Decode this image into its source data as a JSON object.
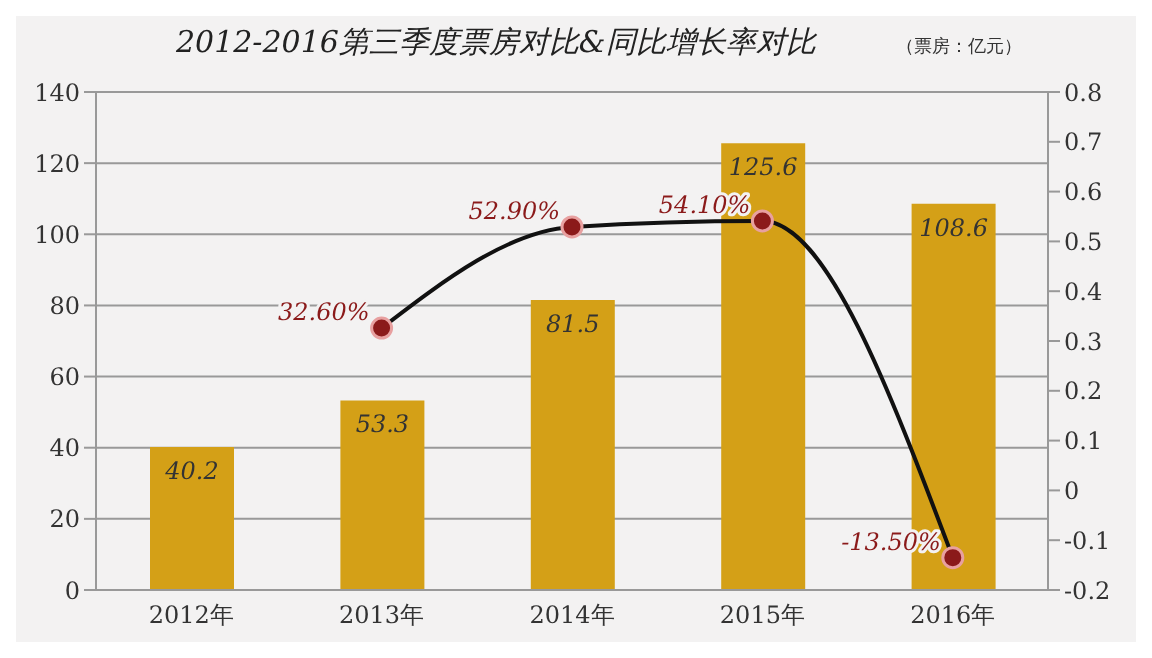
{
  "chart_data": {
    "type": "bar",
    "title": "2012-2016第三季度票房对比&同比增长率对比",
    "subtitle": "（票房：亿元）",
    "categories": [
      "2012年",
      "2013年",
      "2014年",
      "2015年",
      "2016年"
    ],
    "series": [
      {
        "color": "#d4a017",
        "values": [
          40.2,
          53.3,
          81.5,
          125.6,
          108.6
        ],
        "value_labels": [
          "40.2",
          "53.3",
          "81.5",
          "125.6",
          "108.6"
        ]
      },
      {
        "type": "line",
        "axis": "y2",
        "color": "#8b1a1a",
        "values": [
          null,
          0.326,
          0.529,
          0.541,
          -0.135
        ],
        "value_labels": [
          null,
          "32.60%",
          "52.90%",
          "54.10%",
          "-13.50%"
        ],
        "marker": "circle"
      }
    ],
    "ylim": [
      0,
      140
    ],
    "yticks": [
      0,
      20,
      40,
      60,
      80,
      100,
      120,
      140
    ],
    "y2lim": [
      -0.2,
      0.8
    ],
    "y2ticks": [
      -0.2,
      -0.1,
      0,
      0.1,
      0.2,
      0.3,
      0.4,
      0.5,
      0.6,
      0.7,
      0.8
    ],
    "grid": "y"
  }
}
